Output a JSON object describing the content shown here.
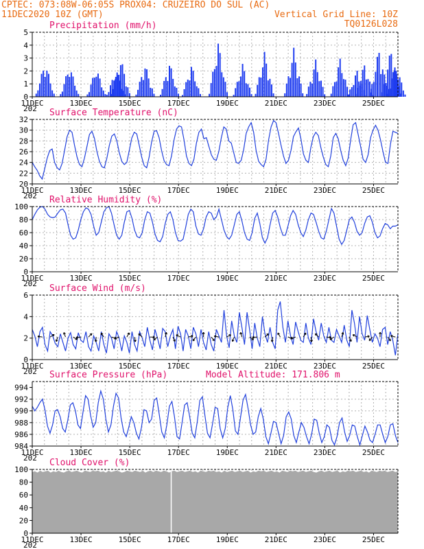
{
  "header": {
    "line1_left": "CPTEC:   073:08W-06:05S   PROX04: CRUZEIRO DO SUL (AC)",
    "line2_left": "11DEC2020 10Z (GMT)",
    "line2_right": "Vertical Grid Line: 10Z",
    "line3_right": "TQ0126L028"
  },
  "colors": {
    "header": "#e86a10",
    "title": "#e0106a",
    "series": "#1f3fdc",
    "bars": "#1e3cf0",
    "cloud": "#a8a8a8",
    "grid": "#b0b0b0",
    "arrow": "#000000"
  },
  "x_axis": {
    "labels": [
      "11DEC",
      "13DEC",
      "15DEC",
      "17DEC",
      "19DEC",
      "21DEC",
      "23DEC",
      "25DEC"
    ],
    "year_label": "202",
    "range_days": [
      0,
      15
    ]
  },
  "chart_data": [
    {
      "type": "bar",
      "title": "Precipitation (mm/h)",
      "ylim": [
        0,
        5
      ],
      "yticks": [
        "0",
        "1",
        "2",
        "3",
        "4",
        "5"
      ],
      "bursts": [
        {
          "day": 0.5,
          "peak": 2.8
        },
        {
          "day": 1.5,
          "peak": 2.5
        },
        {
          "day": 2.6,
          "peak": 2.3
        },
        {
          "day": 3.4,
          "peak": 2.1
        },
        {
          "day": 3.6,
          "peak": 3.1
        },
        {
          "day": 4.6,
          "peak": 2.6
        },
        {
          "day": 5.6,
          "peak": 2.7
        },
        {
          "day": 6.5,
          "peak": 2.5
        },
        {
          "day": 7.6,
          "peak": 4.3
        },
        {
          "day": 8.6,
          "peak": 2.6
        },
        {
          "day": 9.5,
          "peak": 3.5
        },
        {
          "day": 10.7,
          "peak": 3.8
        },
        {
          "day": 11.6,
          "peak": 2.9
        },
        {
          "day": 12.6,
          "peak": 3.0
        },
        {
          "day": 13.3,
          "peak": 2.1
        },
        {
          "day": 13.6,
          "peak": 2.6
        },
        {
          "day": 14.2,
          "peak": 3.8
        },
        {
          "day": 14.7,
          "peak": 3.9
        },
        {
          "day": 14.9,
          "peak": 2.5
        }
      ]
    },
    {
      "type": "line",
      "title": "Surface Temperature (nC)",
      "ylim": [
        20,
        32
      ],
      "yticks": [
        "20",
        "22",
        "24",
        "26",
        "28",
        "30",
        "32"
      ],
      "values": [
        24.0,
        23.2,
        22.5,
        21.5,
        20.9,
        22.8,
        24.8,
        26.2,
        26.5,
        24.0,
        23.0,
        22.6,
        23.8,
        26.2,
        28.8,
        30.0,
        29.6,
        27.2,
        25.0,
        23.6,
        23.2,
        24.8,
        27.0,
        29.2,
        29.8,
        28.5,
        26.0,
        24.2,
        23.2,
        23.0,
        24.8,
        27.2,
        28.9,
        29.3,
        28.0,
        25.8,
        24.2,
        23.6,
        24.0,
        26.2,
        28.5,
        29.6,
        29.3,
        27.2,
        25.0,
        23.4,
        23.0,
        25.0,
        27.8,
        29.8,
        29.9,
        28.6,
        26.2,
        24.3,
        23.6,
        23.4,
        25.2,
        28.2,
        30.2,
        30.8,
        30.6,
        28.2,
        25.2,
        23.8,
        23.4,
        24.6,
        27.6,
        29.6,
        30.2,
        28.4,
        28.6,
        27.0,
        25.4,
        24.6,
        24.4,
        26.0,
        28.6,
        30.6,
        30.2,
        28.0,
        27.6,
        25.8,
        24.0,
        23.8,
        24.4,
        26.4,
        29.4,
        30.6,
        31.4,
        29.6,
        26.2,
        24.2,
        23.6,
        23.2,
        24.6,
        28.2,
        30.6,
        31.8,
        31.4,
        29.4,
        27.2,
        25.2,
        23.8,
        24.4,
        26.2,
        28.8,
        29.7,
        30.4,
        28.4,
        25.6,
        24.4,
        24.0,
        26.8,
        28.8,
        29.6,
        29.0,
        26.8,
        25.0,
        23.6,
        23.2,
        25.2,
        28.6,
        29.4,
        28.4,
        26.2,
        24.4,
        23.4,
        24.8,
        28.2,
        31.0,
        31.4,
        29.2,
        27.0,
        24.6,
        24.0,
        25.4,
        28.6,
        30.0,
        30.9,
        30.0,
        28.2,
        26.0,
        24.0,
        23.8,
        27.4,
        29.8,
        29.6,
        29.4
      ]
    },
    {
      "type": "line",
      "title": "Relative Humidity (%)",
      "ylim": [
        0,
        100
      ],
      "yticks": [
        "0",
        "20",
        "40",
        "60",
        "80",
        "100"
      ],
      "values": [
        80,
        88,
        95,
        99,
        100,
        96,
        88,
        84,
        83,
        84,
        90,
        95,
        96,
        90,
        72,
        56,
        50,
        52,
        64,
        80,
        92,
        98,
        96,
        88,
        70,
        56,
        60,
        76,
        92,
        98,
        100,
        90,
        72,
        56,
        50,
        56,
        76,
        92,
        94,
        82,
        64,
        54,
        52,
        60,
        80,
        92,
        90,
        76,
        58,
        48,
        46,
        54,
        74,
        88,
        92,
        80,
        60,
        48,
        47,
        50,
        68,
        88,
        96,
        92,
        70,
        58,
        56,
        66,
        84,
        92,
        90,
        80,
        84,
        96,
        80,
        64,
        54,
        50,
        56,
        72,
        88,
        92,
        78,
        60,
        50,
        48,
        60,
        82,
        90,
        74,
        52,
        44,
        52,
        72,
        90,
        94,
        84,
        68,
        56,
        56,
        70,
        86,
        94,
        88,
        72,
        60,
        54,
        64,
        80,
        90,
        88,
        76,
        62,
        52,
        50,
        62,
        80,
        97,
        90,
        70,
        50,
        42,
        48,
        64,
        80,
        84,
        76,
        62,
        56,
        60,
        74,
        84,
        86,
        76,
        60,
        52,
        55,
        66,
        74,
        72,
        66,
        70,
        70,
        72
      ]
    },
    {
      "type": "line",
      "title": "Surface Wind (m/s)",
      "ylim": [
        0,
        6
      ],
      "yticks": [
        "0",
        "2",
        "4",
        "6"
      ],
      "values": [
        2.8,
        2.2,
        1.2,
        2.6,
        3.0,
        1.4,
        0.8,
        2.6,
        2.2,
        1.5,
        1.2,
        2.4,
        1.6,
        0.8,
        2.0,
        2.5,
        1.4,
        1.0,
        2.5,
        1.8,
        1.6,
        2.6,
        1.2,
        0.8,
        2.2,
        1.6,
        0.8,
        2.6,
        1.4,
        0.6,
        2.4,
        2.0,
        1.0,
        2.6,
        2.0,
        0.8,
        2.2,
        1.6,
        0.6,
        2.6,
        1.4,
        0.8,
        2.6,
        2.0,
        1.2,
        3.0,
        1.8,
        0.9,
        2.8,
        2.0,
        1.0,
        2.9,
        2.6,
        1.2,
        2.2,
        2.8,
        1.0,
        3.1,
        2.4,
        0.8,
        2.8,
        2.2,
        1.0,
        3.0,
        2.4,
        1.2,
        2.8,
        1.6,
        0.9,
        2.6,
        1.4,
        0.8,
        2.8,
        2.2,
        1.6,
        4.6,
        2.2,
        1.1,
        3.6,
        2.2,
        1.6,
        4.4,
        3.0,
        1.4,
        4.4,
        2.8,
        1.0,
        3.4,
        2.0,
        1.2,
        4.0,
        2.4,
        1.6,
        3.0,
        1.6,
        1.0,
        4.6,
        5.4,
        3.0,
        1.6,
        3.6,
        2.2,
        1.4,
        3.5,
        2.6,
        1.8,
        1.6,
        3.4,
        2.0,
        1.4,
        3.8,
        2.6,
        1.8,
        3.4,
        2.2,
        1.6,
        3.0,
        1.8,
        1.6,
        2.8,
        2.2,
        1.6,
        3.2,
        1.8,
        1.2,
        4.6,
        3.4,
        1.6,
        4.0,
        2.4,
        1.8,
        4.1,
        2.8,
        1.6,
        2.4,
        2.0,
        1.2,
        2.8,
        3.0,
        1.4,
        2.6,
        1.8,
        0.4,
        2.4
      ]
    },
    {
      "type": "line",
      "title": "Surface Pressure (hPa)",
      "annotation": "Model Altitude: 171.806  m",
      "ylim": [
        984,
        995
      ],
      "yticks": [
        "984",
        "986",
        "988",
        "990",
        "992",
        "994"
      ],
      "values": [
        990.8,
        990.0,
        990.6,
        991.4,
        992.0,
        990.2,
        987.4,
        986.2,
        987.6,
        990.0,
        990.2,
        989.0,
        987.0,
        986.4,
        988.4,
        991.0,
        991.4,
        990.0,
        987.6,
        987.0,
        989.8,
        992.6,
        992.0,
        989.2,
        987.2,
        988.0,
        991.4,
        993.4,
        992.0,
        988.6,
        986.4,
        987.6,
        990.8,
        993.0,
        992.2,
        988.8,
        986.4,
        985.6,
        987.2,
        989.0,
        988.0,
        986.2,
        985.2,
        987.2,
        990.2,
        990.0,
        988.0,
        988.6,
        991.8,
        992.2,
        989.4,
        986.4,
        985.4,
        987.6,
        990.8,
        991.6,
        989.0,
        985.6,
        985.2,
        988.0,
        991.0,
        991.4,
        989.0,
        986.2,
        985.4,
        988.2,
        991.8,
        992.4,
        989.2,
        986.2,
        985.4,
        987.8,
        990.6,
        990.4,
        987.0,
        985.4,
        987.0,
        990.6,
        992.6,
        990.2,
        986.6,
        986.0,
        988.8,
        991.8,
        992.8,
        990.4,
        987.6,
        986.0,
        986.4,
        989.0,
        990.4,
        988.6,
        985.6,
        984.4,
        986.2,
        988.2,
        988.0,
        986.2,
        984.4,
        985.8,
        989.0,
        989.8,
        988.6,
        985.8,
        984.6,
        986.4,
        988.0,
        987.2,
        985.6,
        984.4,
        986.0,
        988.6,
        988.4,
        986.2,
        984.6,
        985.6,
        987.6,
        987.2,
        985.0,
        984.2,
        985.6,
        988.0,
        988.8,
        986.4,
        984.8,
        985.8,
        987.6,
        987.4,
        985.6,
        984.2,
        985.8,
        987.4,
        986.4,
        985.0,
        984.6,
        986.0,
        987.6,
        987.6,
        986.0,
        984.6,
        985.6,
        987.6,
        987.8,
        985.8,
        984.6
      ]
    },
    {
      "type": "area",
      "title": "Cloud Cover (%)",
      "ylim": [
        0,
        100
      ],
      "yticks": [
        "0",
        "20",
        "40",
        "60",
        "80",
        "100"
      ],
      "values": [
        96,
        97,
        95,
        98,
        96,
        97,
        98,
        95,
        97,
        96,
        98,
        96,
        95,
        97,
        98,
        96,
        97,
        98,
        96,
        95,
        98,
        97,
        96,
        98,
        97,
        98,
        96,
        97,
        95,
        98,
        96,
        97,
        98,
        97,
        95,
        96,
        98,
        97,
        96,
        98,
        97,
        96,
        98,
        95,
        97,
        98,
        96,
        98,
        97,
        96,
        98,
        97,
        95,
        97,
        98,
        96,
        97,
        98,
        96,
        97,
        98,
        96,
        97,
        95,
        98,
        97,
        96,
        98,
        97,
        98,
        96,
        97,
        95,
        98,
        96,
        97,
        98,
        96,
        97,
        98,
        96,
        97,
        98,
        95,
        97,
        96,
        98,
        97,
        98,
        96,
        97,
        98,
        96,
        97,
        95,
        98,
        97,
        96,
        98,
        97,
        98,
        96,
        97,
        98,
        96,
        97,
        98,
        96,
        95,
        97,
        98,
        96,
        97,
        98,
        96,
        97,
        98,
        95,
        97,
        96,
        98,
        97,
        98,
        96,
        97,
        98,
        96,
        97,
        95,
        98,
        97,
        96,
        98,
        97,
        98,
        96,
        97,
        98,
        96,
        97
      ]
    }
  ]
}
